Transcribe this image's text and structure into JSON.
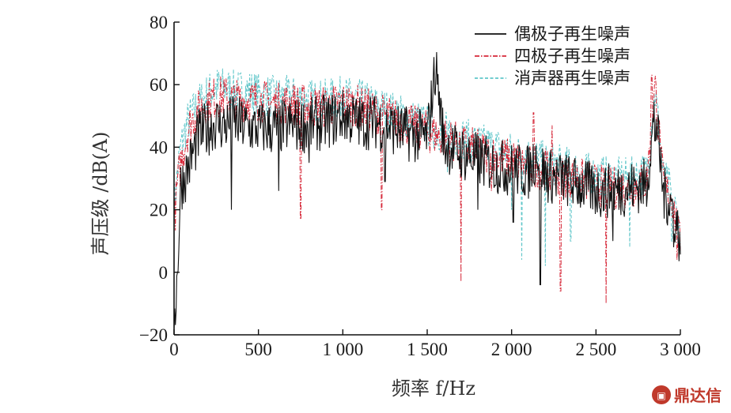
{
  "chart_data": {
    "type": "line",
    "xlabel": "频率 f/Hz",
    "ylabel": "声压级 /dB(A)",
    "xlim": [
      0,
      3000
    ],
    "ylim": [
      -20,
      80
    ],
    "x_ticks": [
      0,
      500,
      1000,
      1500,
      2000,
      2500,
      3000
    ],
    "x_tick_labels": [
      "0",
      "500",
      "1 000",
      "1 500",
      "2 000",
      "2 500",
      "3 000"
    ],
    "y_ticks": [
      -20,
      0,
      20,
      40,
      60,
      80
    ],
    "y_tick_labels": [
      "−20",
      "0",
      "20",
      "40",
      "60",
      "80"
    ],
    "grid": false,
    "legend_position": "top-right",
    "series": [
      {
        "name": "偶极子再生噪声",
        "color": "#111111",
        "dash": "solid",
        "x": [
          0,
          10,
          20,
          40,
          60,
          80,
          100,
          150,
          200,
          250,
          300,
          350,
          400,
          450,
          500,
          600,
          700,
          800,
          900,
          1000,
          1100,
          1200,
          1300,
          1400,
          1500,
          1550,
          1600,
          1700,
          1800,
          1900,
          2000,
          2100,
          2150,
          2200,
          2300,
          2400,
          2500,
          2600,
          2700,
          2800,
          2850,
          2900,
          2950,
          3000
        ],
        "values": [
          -12,
          -10,
          0,
          28,
          30,
          33,
          36,
          44,
          46,
          48,
          47,
          48,
          47,
          46,
          46,
          46,
          47,
          47,
          48,
          50,
          48,
          48,
          46,
          44,
          43,
          66,
          41,
          38,
          36,
          34,
          33,
          32,
          38,
          31,
          30,
          28,
          26,
          26,
          27,
          28,
          52,
          25,
          22,
          10
        ],
        "spikes": [
          {
            "x": 340,
            "y": 20
          },
          {
            "x": 620,
            "y": 26
          },
          {
            "x": 800,
            "y": 35
          },
          {
            "x": 1250,
            "y": 29
          },
          {
            "x": 1560,
            "y": 60
          },
          {
            "x": 1800,
            "y": 20
          },
          {
            "x": 2010,
            "y": 16
          },
          {
            "x": 2150,
            "y": 35
          },
          {
            "x": 2170,
            "y": -4
          },
          {
            "x": 2600,
            "y": 10
          },
          {
            "x": 2850,
            "y": 42
          },
          {
            "x": 2960,
            "y": 8
          }
        ]
      },
      {
        "name": "四极子再生噪声",
        "color": "#d62839",
        "dash": "dashdot",
        "x": [
          0,
          20,
          40,
          60,
          80,
          100,
          150,
          200,
          250,
          300,
          350,
          400,
          450,
          500,
          600,
          700,
          800,
          900,
          1000,
          1100,
          1200,
          1300,
          1400,
          1500,
          1600,
          1700,
          1800,
          1900,
          2000,
          2100,
          2200,
          2300,
          2400,
          2500,
          2600,
          2700,
          2800,
          2850,
          2900,
          2950,
          3000
        ],
        "values": [
          15,
          28,
          35,
          40,
          45,
          48,
          52,
          55,
          56,
          56,
          55,
          55,
          55,
          55,
          54,
          54,
          53,
          53,
          54,
          53,
          51,
          49,
          47,
          45,
          43,
          41,
          39,
          37,
          36,
          34,
          33,
          31,
          30,
          28,
          27,
          27,
          29,
          60,
          27,
          24,
          8
        ],
        "spikes": [
          {
            "x": 750,
            "y": 17
          },
          {
            "x": 1230,
            "y": 20
          },
          {
            "x": 1700,
            "y": -3
          },
          {
            "x": 1880,
            "y": 26
          },
          {
            "x": 2130,
            "y": 51
          },
          {
            "x": 2240,
            "y": 47
          },
          {
            "x": 2290,
            "y": -6
          },
          {
            "x": 2560,
            "y": -10
          },
          {
            "x": 2830,
            "y": 63
          },
          {
            "x": 2980,
            "y": 4
          }
        ]
      },
      {
        "name": "消声器再生噪声",
        "color": "#5fc6c9",
        "dash": "dashed",
        "x": [
          0,
          20,
          40,
          60,
          80,
          100,
          150,
          200,
          250,
          300,
          350,
          400,
          450,
          500,
          600,
          700,
          800,
          900,
          1000,
          1100,
          1200,
          1300,
          1400,
          1500,
          1600,
          1700,
          1800,
          1900,
          2000,
          2100,
          2200,
          2300,
          2400,
          2500,
          2600,
          2700,
          2800,
          2850,
          2900,
          2950,
          3000
        ],
        "values": [
          20,
          32,
          40,
          44,
          48,
          50,
          54,
          57,
          59,
          59,
          58,
          58,
          58,
          57,
          56,
          56,
          55,
          55,
          56,
          55,
          53,
          51,
          49,
          47,
          45,
          43,
          41,
          40,
          38,
          37,
          35,
          34,
          32,
          31,
          30,
          30,
          32,
          58,
          30,
          25,
          12
        ],
        "spikes": [
          {
            "x": 270,
            "y": 62
          },
          {
            "x": 1620,
            "y": 32
          },
          {
            "x": 2000,
            "y": 20
          },
          {
            "x": 2060,
            "y": 4
          },
          {
            "x": 2200,
            "y": 2
          },
          {
            "x": 2350,
            "y": 10
          },
          {
            "x": 2700,
            "y": 8
          },
          {
            "x": 2950,
            "y": 10
          }
        ]
      }
    ]
  },
  "watermark": {
    "text": "鼎达信",
    "color": "#c0392b"
  }
}
